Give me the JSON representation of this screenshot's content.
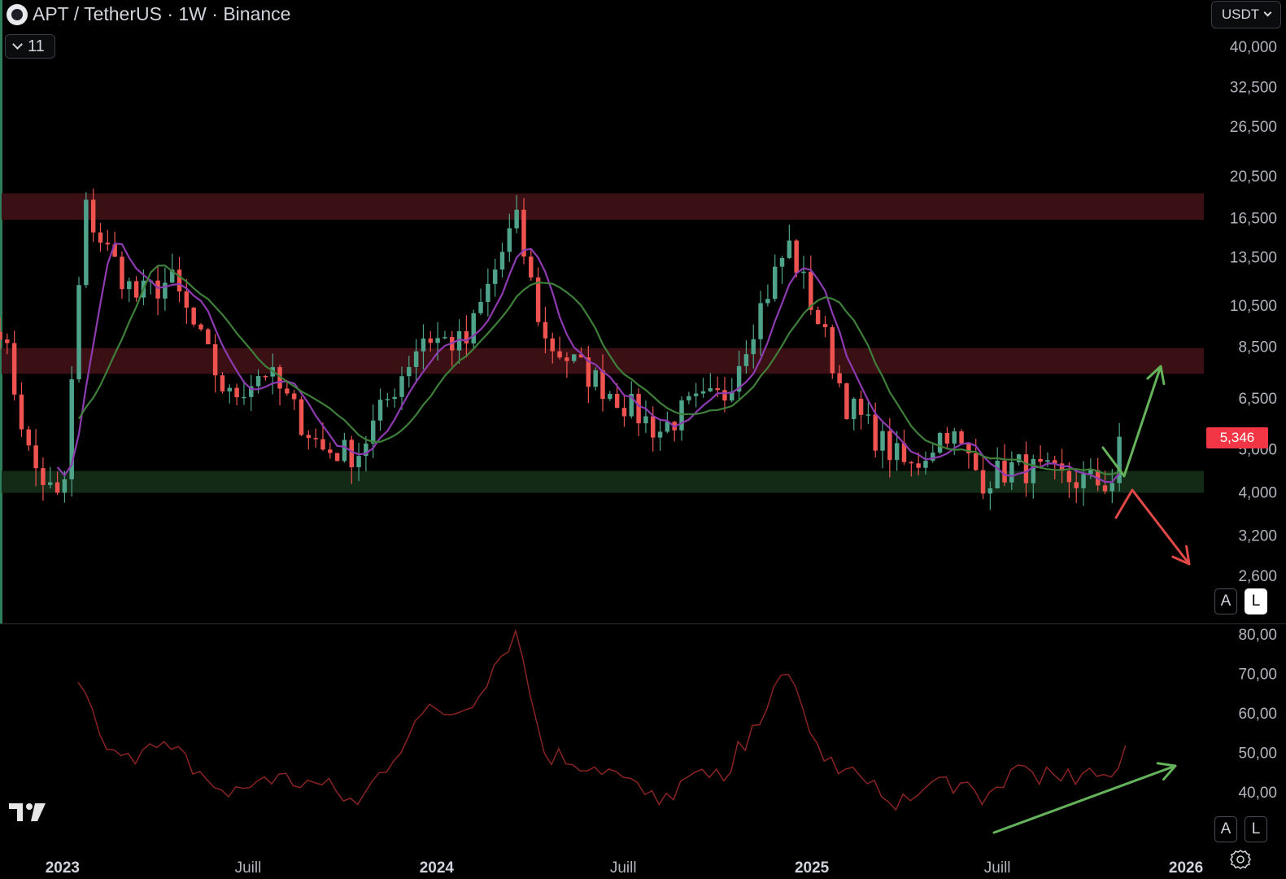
{
  "header": {
    "symbol_title": "APT / TetherUS · 1W · Binance",
    "indicators_count": "11",
    "currency": "USDT"
  },
  "last_price_label": "5,346",
  "price_axis_buttons": {
    "auto": "A",
    "log": "L"
  },
  "indicator_axis_buttons": {
    "auto": "A",
    "log": "L"
  },
  "icons": {
    "exchange_logo": "aptos-logo-icon",
    "brand": "tradingview-logo-icon",
    "settings": "gear-icon"
  },
  "colors": {
    "up": "#4ea38a",
    "down": "#ef5350",
    "ma_fast": "#8e3ab0",
    "ma_slow": "#3e7f3a",
    "resistance_zone": "#3b1014",
    "support_zone": "#132a16",
    "rsi_line": "#8a2323",
    "arrow_up": "#64b35a",
    "arrow_down": "#e04848"
  },
  "chart_data": [
    {
      "type": "candlestick",
      "scale": "log",
      "interval": "1W",
      "y_ticks": [
        "40,000",
        "32,500",
        "26,500",
        "20,500",
        "16,500",
        "13,500",
        "10,500",
        "8,500",
        "6,500",
        "5,000",
        "4,000",
        "3,200",
        "2,600"
      ],
      "y_tick_values": [
        40000,
        32500,
        26500,
        20500,
        16500,
        13500,
        10500,
        8500,
        6500,
        5000,
        4000,
        3200,
        2600
      ],
      "x_ticks": [
        "2023",
        "Juill",
        "2024",
        "Juill",
        "2025",
        "Juill",
        "2026"
      ],
      "x_tick_dates": [
        "2023-01-01",
        "2023-07-01",
        "2024-01-01",
        "2024-07-01",
        "2025-01-01",
        "2025-07-01",
        "2026-01-01"
      ],
      "ylim": [
        2550,
        46000
      ],
      "xlim": [
        "2022-11-01",
        "2026-01-20"
      ],
      "zones": [
        {
          "name": "resistance-high",
          "low": 16400,
          "high": 18800
        },
        {
          "name": "resistance-mid",
          "low": 7400,
          "high": 8450
        },
        {
          "name": "support",
          "low": 4000,
          "high": 4480
        }
      ],
      "keypoints": [
        [
          "2022-11-01",
          9600
        ],
        [
          "2022-12-01",
          4700
        ],
        [
          "2023-01-01",
          3700
        ],
        [
          "2023-01-23",
          17500
        ],
        [
          "2023-02-06",
          15000
        ],
        [
          "2023-03-13",
          11000
        ],
        [
          "2023-04-17",
          12000
        ],
        [
          "2023-06-12",
          6500
        ],
        [
          "2023-07-17",
          7600
        ],
        [
          "2023-09-11",
          5000
        ],
        [
          "2023-10-16",
          4900
        ],
        [
          "2023-12-18",
          9000
        ],
        [
          "2024-01-29",
          8600
        ],
        [
          "2024-03-18",
          16500
        ],
        [
          "2024-04-15",
          8800
        ],
        [
          "2024-06-17",
          6800
        ],
        [
          "2024-08-05",
          5500
        ],
        [
          "2024-09-02",
          6200
        ],
        [
          "2024-10-07",
          6600
        ],
        [
          "2024-11-04",
          9500
        ],
        [
          "2024-12-09",
          14500
        ],
        [
          "2025-01-13",
          9000
        ],
        [
          "2025-02-03",
          6400
        ],
        [
          "2025-03-10",
          5200
        ],
        [
          "2025-04-07",
          4500
        ],
        [
          "2025-05-12",
          5600
        ],
        [
          "2025-06-16",
          4300
        ],
        [
          "2025-07-21",
          4600
        ],
        [
          "2025-09-01",
          4300
        ],
        [
          "2025-10-20",
          4200
        ],
        [
          "2025-11-03",
          5346
        ]
      ],
      "x_tick_positions_note": "",
      "series": [
        {
          "kind": "ma-fast"
        },
        {
          "kind": "ma-slow"
        }
      ]
    },
    {
      "type": "line",
      "y_ticks": [
        "80,00",
        "70,00",
        "60,00",
        "50,00",
        "40,00"
      ],
      "y_tick_values": [
        80,
        70,
        60,
        50,
        40
      ],
      "ylim": [
        34,
        82
      ],
      "x": [
        "2023-01-16",
        "2023-02-06",
        "2023-03-06",
        "2023-04-17",
        "2023-06-12",
        "2023-07-17",
        "2023-09-11",
        "2023-10-16",
        "2023-12-18",
        "2024-01-29",
        "2024-03-18",
        "2024-04-15",
        "2024-06-17",
        "2024-08-05",
        "2024-09-02",
        "2024-10-07",
        "2024-11-04",
        "2024-12-09",
        "2025-01-13",
        "2025-02-03",
        "2025-03-10",
        "2025-04-07",
        "2025-05-12",
        "2025-06-16",
        "2025-07-21",
        "2025-09-01",
        "2025-10-20",
        "2025-11-03"
      ],
      "values": [
        68,
        55,
        50,
        51,
        39,
        44,
        42,
        37,
        60,
        61,
        81,
        50,
        46,
        37,
        44,
        43,
        57,
        70,
        48,
        46,
        39,
        38,
        44,
        37,
        47,
        43,
        44,
        52
      ]
    }
  ]
}
